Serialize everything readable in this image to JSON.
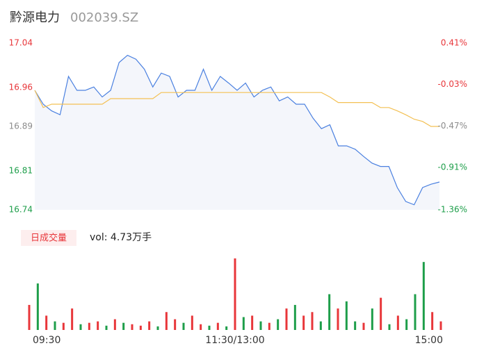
{
  "chart_data": [
    {
      "type": "line",
      "title": "黔源电力",
      "subtitle": "002039.SZ",
      "x": [
        0,
        5,
        10,
        15,
        20,
        25,
        30,
        35,
        40,
        45,
        50,
        55,
        60,
        65,
        70,
        75,
        80,
        85,
        90,
        95,
        100,
        105,
        110,
        115,
        120,
        125,
        130,
        135,
        140,
        145,
        150,
        155,
        160,
        165,
        170,
        175,
        180,
        185,
        190,
        195,
        200,
        205,
        210,
        215,
        220,
        225,
        230,
        235,
        240
      ],
      "xlim": [
        0,
        240
      ],
      "series": [
        {
          "color": "#4a80e0",
          "fill": "#f4f6fb",
          "values": [
            16.955,
            16.93,
            16.918,
            16.911,
            16.98,
            16.955,
            16.955,
            16.961,
            16.943,
            16.955,
            17.005,
            17.018,
            17.011,
            16.993,
            16.961,
            16.986,
            16.98,
            16.943,
            16.955,
            16.955,
            16.993,
            16.955,
            16.98,
            16.968,
            16.955,
            16.968,
            16.943,
            16.955,
            16.961,
            16.936,
            16.943,
            16.93,
            16.93,
            16.905,
            16.886,
            16.893,
            16.855,
            16.855,
            16.849,
            16.836,
            16.824,
            16.818,
            16.818,
            16.78,
            16.755,
            16.749,
            16.78,
            16.786,
            16.79
          ]
        },
        {
          "color": "#f3c053",
          "values": [
            16.955,
            16.924,
            16.93,
            16.93,
            16.93,
            16.93,
            16.93,
            16.93,
            16.93,
            16.94,
            16.94,
            16.94,
            16.94,
            16.94,
            16.94,
            16.951,
            16.951,
            16.951,
            16.951,
            16.951,
            16.951,
            16.951,
            16.951,
            16.951,
            16.951,
            16.951,
            16.951,
            16.951,
            16.951,
            16.951,
            16.951,
            16.951,
            16.951,
            16.951,
            16.951,
            16.943,
            16.933,
            16.933,
            16.933,
            16.933,
            16.933,
            16.924,
            16.924,
            16.918,
            16.911,
            16.903,
            16.899,
            16.89,
            16.89
          ]
        }
      ],
      "ylim": [
        16.74,
        17.04
      ],
      "yticks": [
        17.04,
        16.96,
        16.89,
        16.81,
        16.74
      ],
      "ytick_colors": [
        "#e8363a",
        "#e8363a",
        "#8c8c8c",
        "#1e9e4a",
        "#1e9e4a"
      ],
      "y2lim": [
        -1.36,
        0.41
      ],
      "y2ticks": [
        {
          "value": 0.41,
          "label": "0.41%"
        },
        {
          "value": -0.03,
          "label": "-0.03%"
        },
        {
          "value": -0.47,
          "label": "-0.47%"
        },
        {
          "value": -0.91,
          "label": "-0.91%"
        },
        {
          "value": -1.36,
          "label": "-1.36%"
        }
      ],
      "y2tick_colors": [
        "#e8363a",
        "#e8363a",
        "#8c8c8c",
        "#1e9e4a",
        "#1e9e4a"
      ]
    },
    {
      "type": "bar",
      "title": "日成交量",
      "subtitle": "vol: 4.73万手",
      "x": [
        0,
        5,
        10,
        15,
        20,
        25,
        30,
        35,
        40,
        45,
        50,
        55,
        60,
        65,
        70,
        75,
        80,
        85,
        90,
        95,
        100,
        105,
        110,
        115,
        120,
        125,
        130,
        135,
        140,
        145,
        150,
        155,
        160,
        165,
        170,
        175,
        180,
        185,
        190,
        195,
        200,
        205,
        210,
        215,
        220,
        225,
        230,
        235,
        240
      ],
      "xlim": [
        0,
        240
      ],
      "xticks": [
        {
          "value": 0,
          "label": "09:30"
        },
        {
          "value": 120,
          "label": "11:30/13:00"
        },
        {
          "value": 240,
          "label": "15:00"
        }
      ],
      "ylim": [
        0,
        100
      ],
      "values": [
        35,
        65,
        20,
        12,
        10,
        30,
        8,
        10,
        12,
        6,
        15,
        10,
        8,
        6,
        12,
        5,
        25,
        15,
        10,
        20,
        8,
        6,
        10,
        5,
        100,
        18,
        20,
        12,
        10,
        15,
        30,
        35,
        20,
        25,
        12,
        50,
        30,
        40,
        12,
        10,
        30,
        45,
        8,
        20,
        15,
        50,
        95,
        25,
        12
      ],
      "colors": [
        "#e8363a",
        "#1e9e4a",
        "#e8363a",
        "#1e9e4a",
        "#e8363a",
        "#e8363a",
        "#1e9e4a",
        "#e8363a",
        "#e8363a",
        "#1e9e4a",
        "#e8363a",
        "#1e9e4a",
        "#e8363a",
        "#e8363a",
        "#e8363a",
        "#1e9e4a",
        "#e8363a",
        "#e8363a",
        "#1e9e4a",
        "#e8363a",
        "#e8363a",
        "#1e9e4a",
        "#e8363a",
        "#1e9e4a",
        "#e8363a",
        "#1e9e4a",
        "#e8363a",
        "#1e9e4a",
        "#e8363a",
        "#1e9e4a",
        "#e8363a",
        "#1e9e4a",
        "#e8363a",
        "#e8363a",
        "#1e9e4a",
        "#1e9e4a",
        "#e8363a",
        "#1e9e4a",
        "#1e9e4a",
        "#e8363a",
        "#1e9e4a",
        "#e8363a",
        "#1e9e4a",
        "#e8363a",
        "#1e9e4a",
        "#1e9e4a",
        "#1e9e4a",
        "#e8363a",
        "#e8363a"
      ]
    }
  ]
}
